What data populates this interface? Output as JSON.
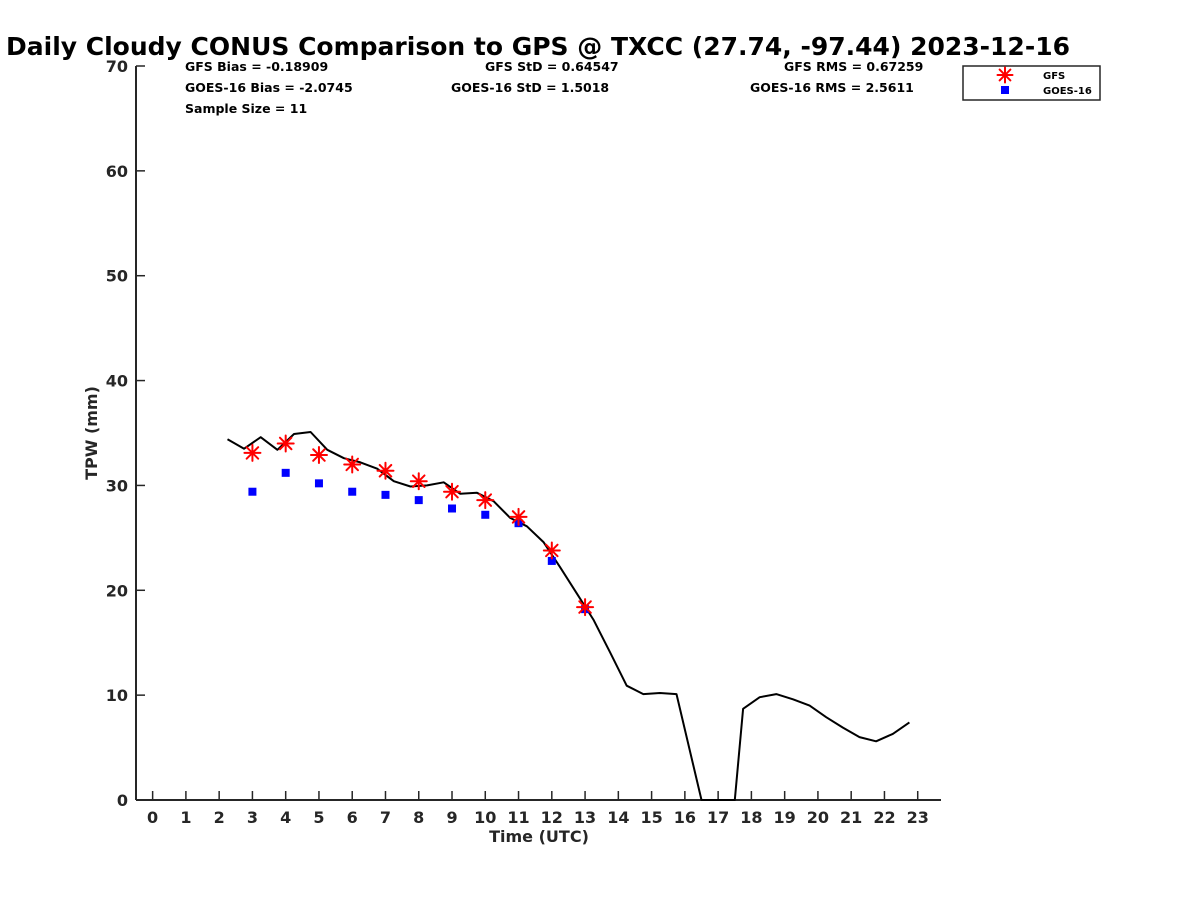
{
  "chart_data": {
    "type": "line",
    "title": "Daily Cloudy CONUS Comparison to GPS @ TXCC (27.74, -97.44) 2023-12-16",
    "xlabel": "Time (UTC)",
    "ylabel": "TPW (mm)",
    "xlim": [
      -0.5,
      23.7
    ],
    "ylim": [
      0,
      70
    ],
    "x_ticks": [
      "0",
      "1",
      "2",
      "3",
      "4",
      "5",
      "6",
      "7",
      "8",
      "9",
      "10",
      "11",
      "12",
      "13",
      "14",
      "15",
      "16",
      "17",
      "18",
      "19",
      "20",
      "21",
      "22",
      "23"
    ],
    "y_ticks": [
      "0",
      "10",
      "20",
      "30",
      "40",
      "50",
      "60",
      "70"
    ],
    "grid": false,
    "legend_position": "top-right",
    "stats": {
      "gfs_bias": "GFS Bias = -0.18909",
      "goes_bias": "GOES-16 Bias = -2.0745",
      "sample_size": "Sample Size = 11",
      "gfs_std": "GFS StD = 0.64547",
      "goes_std": "GOES-16 StD = 1.5018",
      "gfs_rms": "GFS RMS = 0.67259",
      "goes_rms": "GOES-16 RMS = 2.5611"
    },
    "series": [
      {
        "kind": "line",
        "color": "#000000",
        "points": [
          [
            2.25,
            34.4
          ],
          [
            2.75,
            33.5
          ],
          [
            3.25,
            34.6
          ],
          [
            3.75,
            33.4
          ],
          [
            4.25,
            34.9
          ],
          [
            4.75,
            35.1
          ],
          [
            5.25,
            33.4
          ],
          [
            5.75,
            32.6
          ],
          [
            6.25,
            32.2
          ],
          [
            6.75,
            31.6
          ],
          [
            7.25,
            30.4
          ],
          [
            7.75,
            29.9
          ],
          [
            8.25,
            30.0
          ],
          [
            8.75,
            30.3
          ],
          [
            9.25,
            29.2
          ],
          [
            9.75,
            29.3
          ],
          [
            10.25,
            28.5
          ],
          [
            10.75,
            26.9
          ],
          [
            11.25,
            26.1
          ],
          [
            11.75,
            24.6
          ],
          [
            12.25,
            22.2
          ],
          [
            12.75,
            19.7
          ],
          [
            13.25,
            17.2
          ],
          [
            13.75,
            14.1
          ],
          [
            14.25,
            10.9
          ],
          [
            14.75,
            10.1
          ],
          [
            15.25,
            10.2
          ],
          [
            15.75,
            10.1
          ],
          [
            16.5,
            0.0
          ],
          [
            17.5,
            0.0
          ],
          [
            17.75,
            8.7
          ],
          [
            18.25,
            9.8
          ],
          [
            18.75,
            10.1
          ],
          [
            19.25,
            9.6
          ],
          [
            19.75,
            9.0
          ],
          [
            20.25,
            7.9
          ],
          [
            20.75,
            6.9
          ],
          [
            21.25,
            6.0
          ],
          [
            21.75,
            5.6
          ],
          [
            22.25,
            6.3
          ],
          [
            22.75,
            7.4
          ]
        ]
      },
      {
        "name": "GFS",
        "kind": "marker",
        "marker": "asterisk",
        "color": "#ff0000",
        "points": [
          [
            3.0,
            33.1
          ],
          [
            4.0,
            34.0
          ],
          [
            5.0,
            32.9
          ],
          [
            6.0,
            32.0
          ],
          [
            7.0,
            31.4
          ],
          [
            8.0,
            30.4
          ],
          [
            9.0,
            29.4
          ],
          [
            10.0,
            28.6
          ],
          [
            11.0,
            27.0
          ],
          [
            12.0,
            23.8
          ],
          [
            13.0,
            18.4
          ]
        ]
      },
      {
        "name": "GOES-16",
        "kind": "marker",
        "marker": "square",
        "color": "#0000ff",
        "points": [
          [
            3.0,
            29.4
          ],
          [
            4.0,
            31.2
          ],
          [
            5.0,
            30.2
          ],
          [
            6.0,
            29.4
          ],
          [
            7.0,
            29.1
          ],
          [
            8.0,
            28.6
          ],
          [
            9.0,
            27.8
          ],
          [
            10.0,
            27.2
          ],
          [
            11.0,
            26.4
          ],
          [
            12.0,
            22.8
          ],
          [
            13.0,
            18.2
          ]
        ]
      }
    ]
  }
}
